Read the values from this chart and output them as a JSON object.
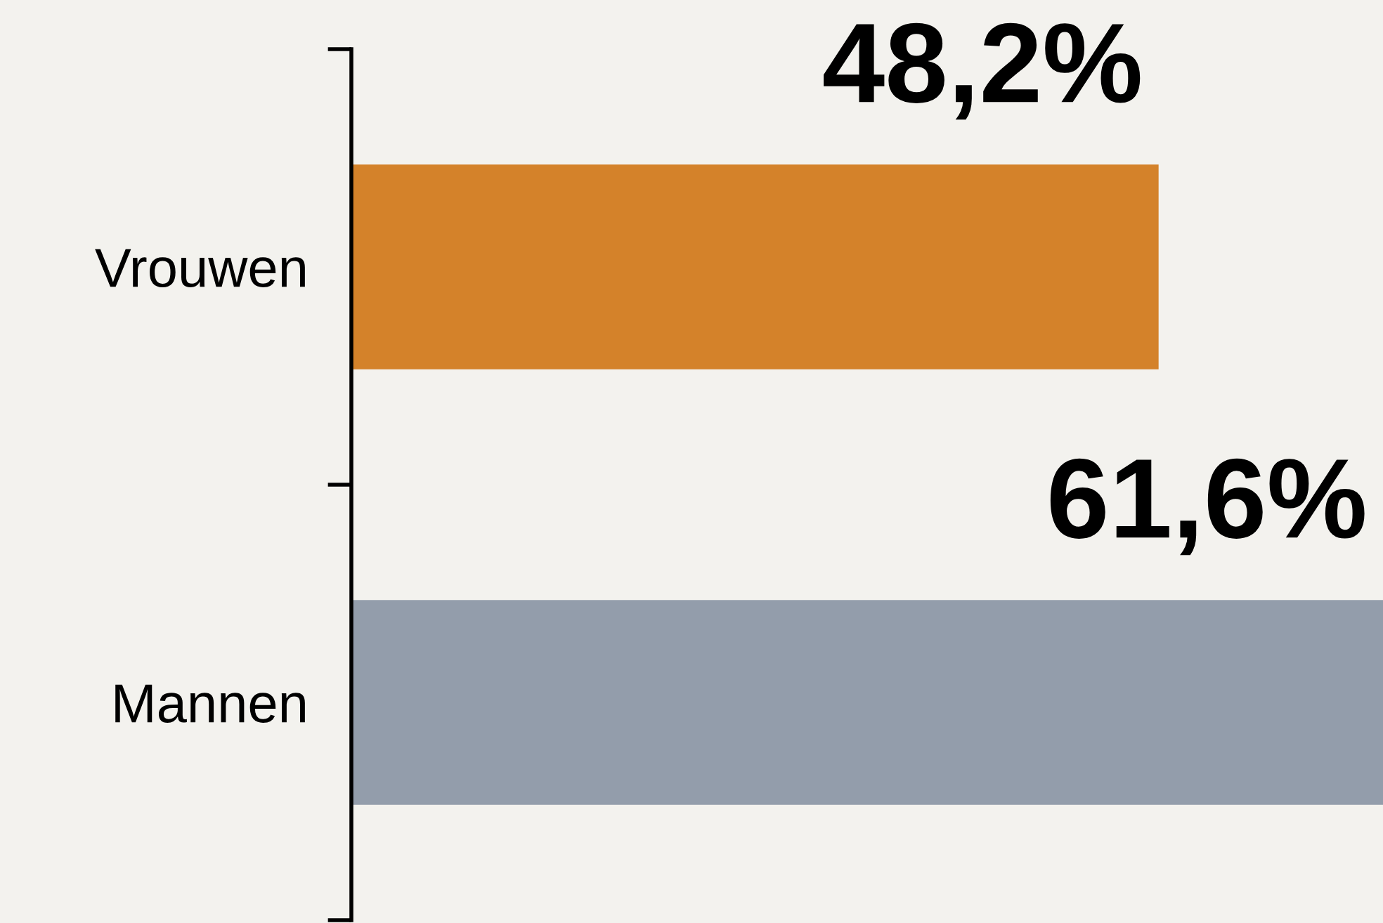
{
  "chart_data": {
    "type": "bar",
    "orientation": "horizontal",
    "categories": [
      "Vrouwen",
      "Mannen"
    ],
    "values": [
      48.2,
      61.6
    ],
    "colors": [
      "#d4822a",
      "#939dab"
    ],
    "value_labels": [
      "48,2%",
      "61,6%"
    ],
    "grid": false,
    "legend": false
  }
}
